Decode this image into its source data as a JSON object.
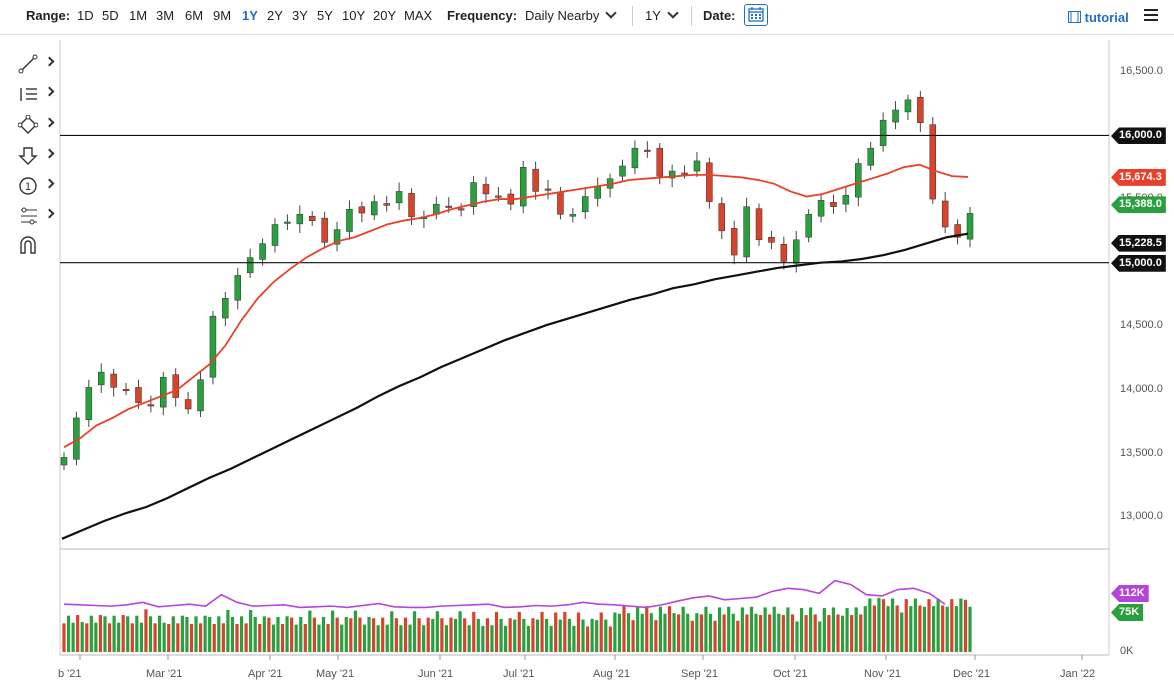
{
  "toolbar": {
    "range_label": "Range:",
    "ranges": [
      "1D",
      "5D",
      "1M",
      "3M",
      "6M",
      "9M",
      "1Y",
      "2Y",
      "3Y",
      "5Y",
      "10Y",
      "20Y",
      "MAX"
    ],
    "active_range": "1Y",
    "frequency_label": "Frequency:",
    "frequency_value": "Daily Nearby",
    "period_value": "1Y",
    "date_label": "Date:",
    "tutorial_label": "tutorial"
  },
  "drawing_tools": [
    "line-tool-icon",
    "list-tool-icon",
    "shapes-tool-icon",
    "arrow-down-tool-icon",
    "number-marker-tool-icon",
    "fibonacci-tool-icon",
    "magnet-icon"
  ],
  "colors": {
    "up": "#29a03d",
    "down": "#d8432b",
    "ma50": "#e8402a",
    "ma200": "#111111",
    "volume_ma": "#b545d8",
    "accent": "#1f6fc5"
  },
  "chart_data": {
    "type": "candlestick",
    "price_ticks": [
      "16,500.0",
      "16,000.0",
      "15,500.0",
      "15,000.0",
      "14,500.0",
      "14,000.0",
      "13,500.0",
      "13,000.0"
    ],
    "price_tick_values": [
      16500,
      16000,
      15500,
      15000,
      14500,
      14000,
      13500,
      13000
    ],
    "ylim": [
      12750,
      16750
    ],
    "x_ticks": [
      "b '21",
      "Mar '21",
      "Apr '21",
      "May '21",
      "Jun '21",
      "Jul '21",
      "Aug '21",
      "Sep '21",
      "Oct '21",
      "Nov '21",
      "Dec '21",
      "Jan '22"
    ],
    "horizontal_lines": [
      16000,
      15000
    ],
    "price_badges": [
      {
        "label": "16,000.0",
        "color": "#111111"
      },
      {
        "label": "15,674.3",
        "color": "#e8402a"
      },
      {
        "label": "15,388.0",
        "color": "#29a03d"
      },
      {
        "label": "15,228.5",
        "color": "#111111"
      },
      {
        "label": "15,000.0",
        "color": "#111111"
      }
    ],
    "price_badge_values": [
      16000,
      15674.3,
      15388.0,
      15228.5,
      15000
    ],
    "closes": [
      13470,
      13780,
      14020,
      14140,
      14020,
      14000,
      13900,
      13880,
      14100,
      13940,
      13850,
      14080,
      14580,
      14720,
      14900,
      15040,
      15150,
      15300,
      15320,
      15380,
      15330,
      15160,
      15260,
      15420,
      15390,
      15480,
      15450,
      15560,
      15360,
      15360,
      15460,
      15440,
      15420,
      15630,
      15540,
      15520,
      15460,
      15750,
      15560,
      15570,
      15380,
      15380,
      15520,
      15600,
      15660,
      15760,
      15900,
      15880,
      15680,
      15720,
      15700,
      15800,
      15480,
      15250,
      15060,
      15440,
      15180,
      15160,
      15010,
      15180,
      15380,
      15490,
      15440,
      15530,
      15780,
      15900,
      16120,
      16200,
      16280,
      16100,
      15500,
      15280,
      15200,
      15388
    ],
    "ma50": [
      13550,
      13620,
      13720,
      13780,
      13850,
      13900,
      13950,
      14000,
      14100,
      14200,
      14350,
      14550,
      14720,
      14850,
      14950,
      15040,
      15110,
      15170,
      15200,
      15250,
      15300,
      15330,
      15350,
      15380,
      15420,
      15450,
      15480,
      15500,
      15500,
      15520,
      15540,
      15560,
      15580,
      15600,
      15620,
      15650,
      15660,
      15670,
      15680,
      15690,
      15690,
      15680,
      15670,
      15650,
      15620,
      15560,
      15520,
      15540,
      15580,
      15620,
      15660,
      15700,
      15750,
      15770,
      15720,
      15680,
      15674
    ],
    "ma200": [
      12830,
      12900,
      12970,
      13030,
      13080,
      13150,
      13230,
      13310,
      13380,
      13460,
      13540,
      13620,
      13700,
      13780,
      13860,
      13950,
      14030,
      14100,
      14180,
      14250,
      14320,
      14390,
      14450,
      14510,
      14560,
      14610,
      14660,
      14710,
      14750,
      14800,
      14830,
      14870,
      14900,
      14930,
      14960,
      14980,
      15000,
      15010,
      15030,
      15060,
      15100,
      15150,
      15200,
      15228
    ],
    "volume_labels": [
      "112K",
      "75K",
      "0K"
    ],
    "volumes": [
      75,
      74,
      73,
      72,
      74,
      78,
      71,
      73,
      75,
      72,
      90,
      78,
      72,
      73,
      74,
      70,
      71,
      72,
      70,
      73,
      76,
      71,
      70,
      70,
      72,
      73,
      74,
      75,
      70,
      71,
      73,
      72,
      74,
      78,
      75,
      74,
      72,
      70,
      74,
      80,
      85,
      88,
      82,
      84,
      86,
      95,
      100,
      98,
      92,
      112,
      106,
      90,
      88,
      98,
      100,
      92,
      75
    ]
  }
}
